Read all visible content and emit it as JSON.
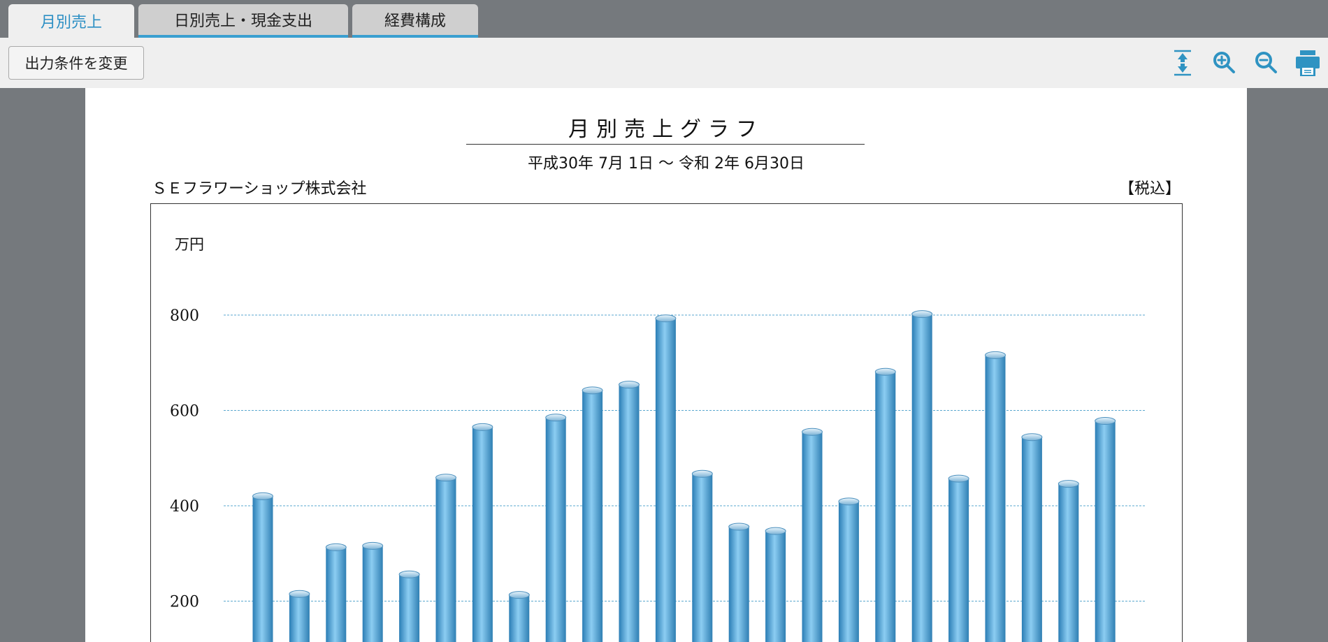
{
  "tabs": [
    {
      "label": "月別売上",
      "active": true
    },
    {
      "label": "日別売上・現金支出",
      "active": false
    },
    {
      "label": "経費構成",
      "active": false
    }
  ],
  "toolbar": {
    "change_conditions_label": "出力条件を変更",
    "icons": [
      "fit-height-icon",
      "zoom-in-icon",
      "zoom-out-icon",
      "print-icon"
    ],
    "icon_color": "#2f93c2"
  },
  "report": {
    "title": "月別売上グラフ",
    "period": "平成30年 7月 1日 ～ 令和 2年 6月30日",
    "company": "ＳＥフラワーショップ株式会社",
    "tax_note": "【税込】"
  },
  "chart_data": {
    "type": "bar",
    "ylabel": "万円",
    "yticks": [
      200,
      400,
      600,
      800
    ],
    "ylim": [
      0,
      900
    ],
    "grid": true,
    "bar_color": "#4a9fd6",
    "values": [
      420,
      215,
      313,
      316,
      256,
      459,
      565,
      213,
      585,
      642,
      654,
      793,
      467,
      356,
      347,
      555,
      409,
      681,
      802,
      457,
      716,
      544,
      446,
      578
    ]
  }
}
